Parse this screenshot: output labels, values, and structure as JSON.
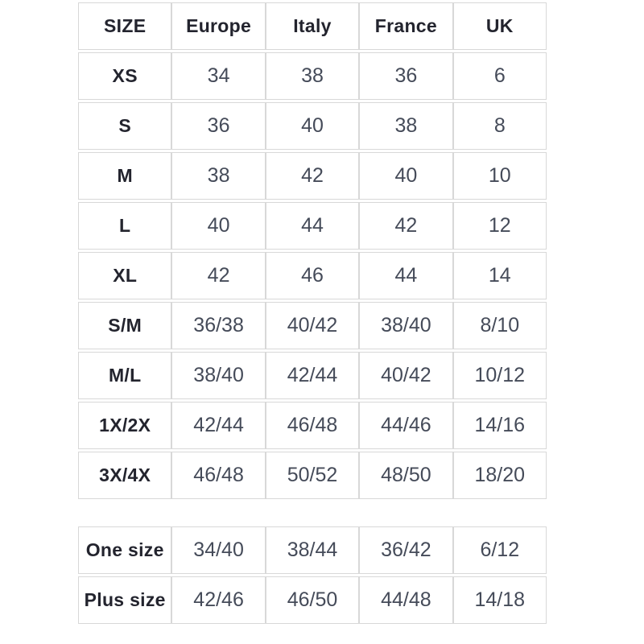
{
  "colors": {
    "background": "#ffffff",
    "border": "#d8d8d8",
    "header_text": "#23242e",
    "value_text": "#454b59"
  },
  "tables": {
    "headers": [
      "SIZE",
      "Europe",
      "Italy",
      "France",
      "UK"
    ],
    "main_rows": [
      [
        "XS",
        "34",
        "38",
        "36",
        "6"
      ],
      [
        "S",
        "36",
        "40",
        "38",
        "8"
      ],
      [
        "M",
        "38",
        "42",
        "40",
        "10"
      ],
      [
        "L",
        "40",
        "44",
        "42",
        "12"
      ],
      [
        "XL",
        "42",
        "46",
        "44",
        "14"
      ],
      [
        "S/M",
        "36/38",
        "40/42",
        "38/40",
        "8/10"
      ],
      [
        "M/L",
        "38/40",
        "42/44",
        "40/42",
        "10/12"
      ],
      [
        "1X/2X",
        "42/44",
        "46/48",
        "44/46",
        "14/16"
      ],
      [
        "3X/4X",
        "46/48",
        "50/52",
        "48/50",
        "18/20"
      ]
    ],
    "extra_rows": [
      [
        "One size",
        "34/40",
        "38/44",
        "36/42",
        "6/12"
      ],
      [
        "Plus size",
        "42/46",
        "46/50",
        "44/48",
        "14/18"
      ]
    ]
  },
  "chart_data": [
    {
      "type": "table",
      "title": "Clothing size conversion chart (main sizes)",
      "columns": [
        "SIZE",
        "Europe",
        "Italy",
        "France",
        "UK"
      ],
      "rows": [
        [
          "XS",
          "34",
          "38",
          "36",
          "6"
        ],
        [
          "S",
          "36",
          "40",
          "38",
          "8"
        ],
        [
          "M",
          "38",
          "42",
          "40",
          "10"
        ],
        [
          "L",
          "40",
          "44",
          "42",
          "12"
        ],
        [
          "XL",
          "42",
          "46",
          "44",
          "14"
        ],
        [
          "S/M",
          "36/38",
          "40/42",
          "38/40",
          "8/10"
        ],
        [
          "M/L",
          "38/40",
          "42/44",
          "40/42",
          "10/12"
        ],
        [
          "1X/2X",
          "42/44",
          "46/48",
          "44/46",
          "14/16"
        ],
        [
          "3X/4X",
          "46/48",
          "50/52",
          "48/50",
          "18/20"
        ]
      ],
      "header_visible": true
    },
    {
      "type": "table",
      "title": "Clothing size conversion chart (one size / plus size)",
      "columns": [
        "SIZE",
        "Europe",
        "Italy",
        "France",
        "UK"
      ],
      "rows": [
        [
          "One size",
          "34/40",
          "38/44",
          "36/42",
          "6/12"
        ],
        [
          "Plus size",
          "42/46",
          "46/50",
          "44/48",
          "14/18"
        ]
      ],
      "header_visible": false
    }
  ]
}
